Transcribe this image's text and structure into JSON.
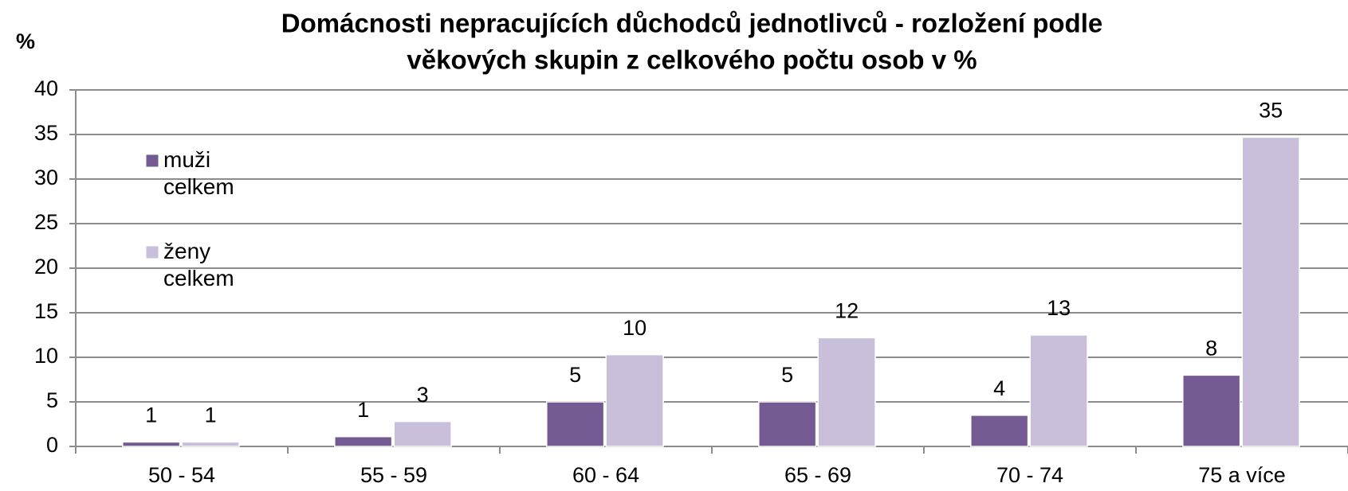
{
  "chart_data": {
    "type": "bar",
    "title": "Domácnosti nepracujících důchodců jednotlivců - rozložení podle věkových skupin z celkového počtu osob  v  %",
    "y_label": "%",
    "categories": [
      "50 - 54",
      "55 - 59",
      "60 - 64",
      "65 - 69",
      "70 - 74",
      "75 a více"
    ],
    "series": [
      {
        "name": "muži celkem",
        "color": "#735a93",
        "values": [
          0.5,
          1.1,
          5,
          5,
          3.5,
          8
        ],
        "value_labels": [
          "1",
          "1",
          "5",
          "5",
          "4",
          "8"
        ]
      },
      {
        "name": "ženy celkem",
        "color": "#c9bfdb",
        "values": [
          0.5,
          2.8,
          10.3,
          12.2,
          12.5,
          34.7
        ],
        "value_labels": [
          "1",
          "3",
          "10",
          "12",
          "13",
          "35"
        ]
      }
    ],
    "ylim": [
      0,
      40
    ],
    "yticks": [
      0,
      5,
      10,
      15,
      20,
      25,
      30,
      35,
      40
    ],
    "grid": true,
    "legend": "left"
  }
}
